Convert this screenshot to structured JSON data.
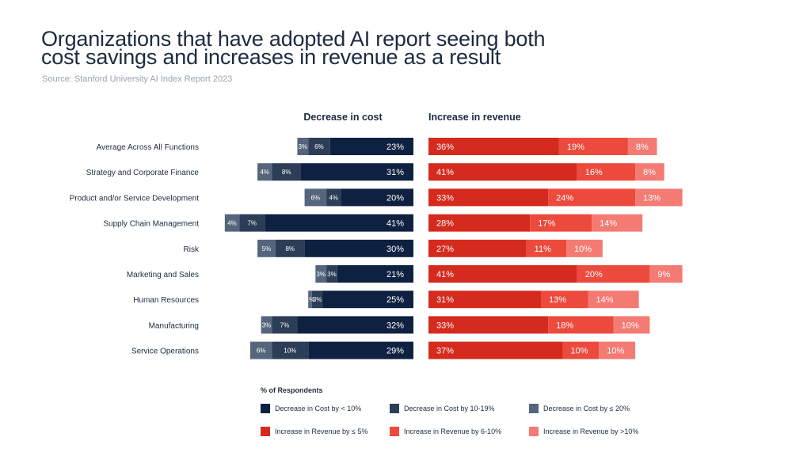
{
  "title": {
    "line1": "Organizations that have adopted AI report seeing both",
    "line2": "cost savings and increases in revenue as a result"
  },
  "source": "Source: Stanford University AI Index Report 2023",
  "chart_data": {
    "type": "bar",
    "orientation": "horizontal-stacked",
    "categories": [
      "Average Across All Functions",
      "Strategy and Corporate Finance",
      "Product and/or Service Development",
      "Supply Chain Management",
      "Risk",
      "Marketing and Sales",
      "Human Resources",
      "Manufacturing",
      "Service Operations"
    ],
    "panels": [
      {
        "title": "Decrease in cost",
        "direction": "left",
        "series": [
          {
            "name": "Decrease in Cost by < 10%",
            "color": "#0f2140",
            "values": [
              23,
              31,
              20,
              41,
              30,
              21,
              25,
              32,
              29
            ]
          },
          {
            "name": "Decrease in Cost by 10-19%",
            "color": "#2c3d57",
            "values": [
              6,
              8,
              4,
              7,
              8,
              3,
              3,
              7,
              10
            ]
          },
          {
            "name": "Decrease in Cost by ≤ 20%",
            "color": "#55657c",
            "values": [
              3,
              4,
              6,
              4,
              5,
              3,
              1,
              3,
              6
            ]
          }
        ]
      },
      {
        "title": "Increase in revenue",
        "direction": "right",
        "series": [
          {
            "name": "Increase in Revenue by ≤ 5%",
            "color": "#d42b1e",
            "values": [
              36,
              41,
              33,
              28,
              27,
              41,
              31,
              33,
              37
            ]
          },
          {
            "name": "Increase in Revenue by 6-10%",
            "color": "#ec4a3d",
            "values": [
              19,
              16,
              24,
              17,
              11,
              20,
              13,
              18,
              10
            ]
          },
          {
            "name": "Increase in Revenue by >10%",
            "color": "#f47b73",
            "values": [
              8,
              8,
              13,
              14,
              10,
              9,
              14,
              10,
              10
            ]
          }
        ]
      }
    ],
    "legend_title": "% of Respondents",
    "legend_position": "bottom"
  }
}
